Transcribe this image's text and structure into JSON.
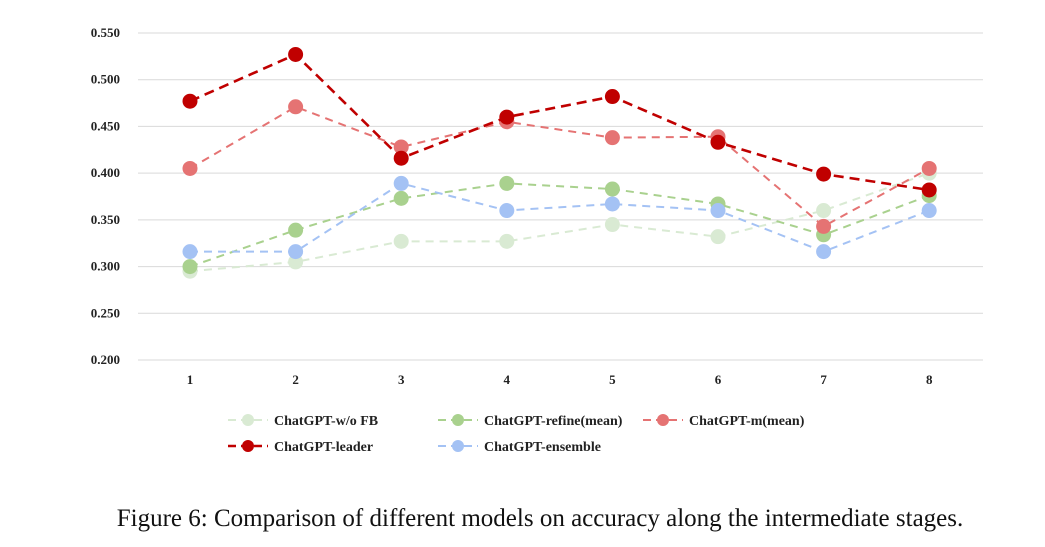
{
  "chart_data": {
    "type": "line",
    "title": "",
    "xlabel": "",
    "ylabel": "",
    "categories": [
      "1",
      "2",
      "3",
      "4",
      "5",
      "6",
      "7",
      "8"
    ],
    "y_ticks": [
      "0.200",
      "0.250",
      "0.300",
      "0.350",
      "0.400",
      "0.450",
      "0.500",
      "0.550"
    ],
    "ylim": [
      0.2,
      0.55
    ],
    "grid": true,
    "legend_position": "bottom",
    "series": [
      {
        "name": "ChatGPT-w/o FB",
        "color": "#d9ead3",
        "values": [
          0.295,
          0.305,
          0.327,
          0.327,
          0.345,
          0.332,
          0.36,
          0.4
        ]
      },
      {
        "name": "ChatGPT-refine(mean)",
        "color": "#a9d18e",
        "values": [
          0.3,
          0.339,
          0.373,
          0.389,
          0.383,
          0.367,
          0.334,
          0.376
        ]
      },
      {
        "name": "ChatGPT-m(mean)",
        "color": "#e57373",
        "values": [
          0.405,
          0.471,
          0.428,
          0.455,
          0.438,
          0.439,
          0.343,
          0.405
        ]
      },
      {
        "name": "ChatGPT-leader",
        "color": "#c00000",
        "values": [
          0.477,
          0.527,
          0.416,
          0.46,
          0.482,
          0.433,
          0.399,
          0.382
        ]
      },
      {
        "name": "ChatGPT-ensemble",
        "color": "#a4c2f4",
        "values": [
          0.316,
          0.316,
          0.389,
          0.36,
          0.367,
          0.36,
          0.316,
          0.36
        ]
      }
    ]
  },
  "caption": "Figure 6: Comparison of different models on accuracy along the intermediate stages."
}
